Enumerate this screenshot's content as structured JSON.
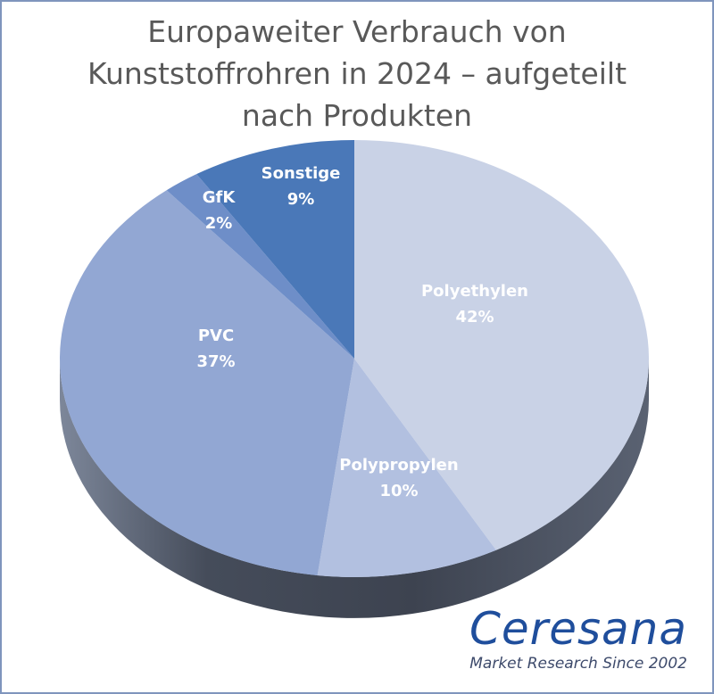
{
  "chart_data": {
    "type": "pie",
    "style": "3d",
    "title_lines": [
      "Europaweiter Verbrauch von",
      "Kunststoffrohren in 2024 – aufgeteilt",
      "nach Produkten"
    ],
    "categories": [
      "Polyethylen",
      "Polypropylen",
      "PVC",
      "GfK",
      "Sonstige"
    ],
    "values": [
      42,
      10,
      37,
      2,
      9
    ],
    "value_labels": [
      "42%",
      "10%",
      "37%",
      "2%",
      "9%"
    ],
    "unit": "%",
    "colors": [
      "#c9d2e6",
      "#b2c0e0",
      "#92a7d3",
      "#6e8ec8",
      "#4a78b8"
    ],
    "side_color": "#454c5a",
    "legend": "none (data labels on slices)"
  },
  "branding": {
    "name": "Ceresana",
    "tagline": "Market Research Since 2002",
    "color": "#1f4e9c"
  }
}
